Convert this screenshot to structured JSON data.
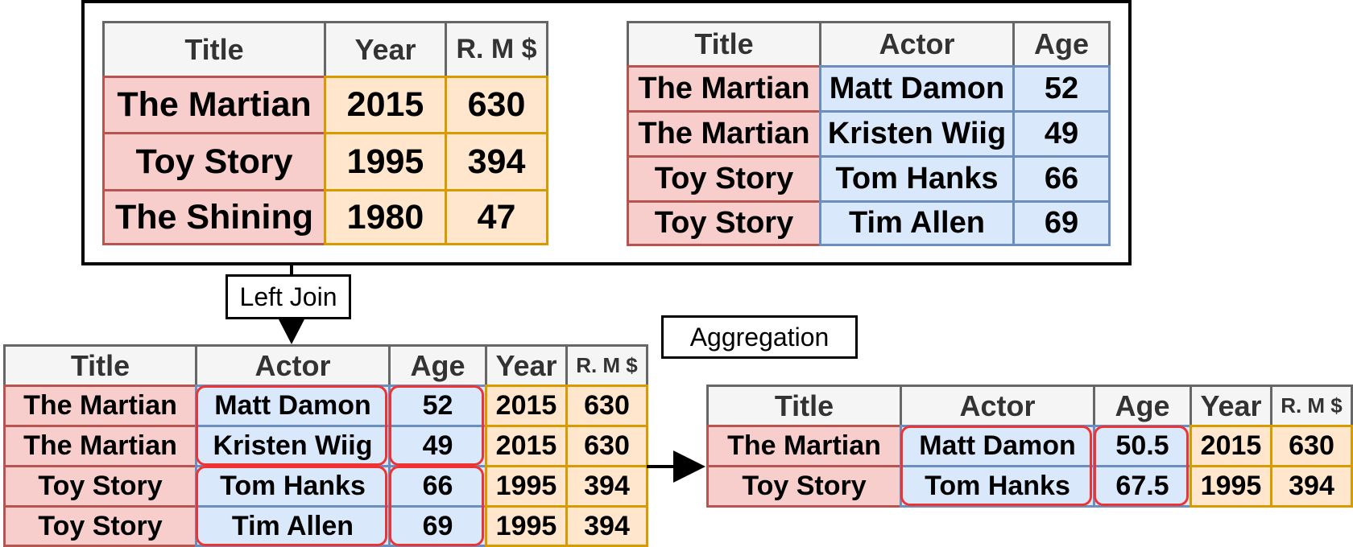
{
  "colors": {
    "header_fill": "#f5f5f5",
    "header_border": "#666666",
    "title_fill": "#f8cecc",
    "title_border": "#b85450",
    "numeric_fill": "#ffe6cc",
    "numeric_border": "#d79b00",
    "actor_fill": "#dae8fc",
    "actor_border": "#6c8ebf",
    "group_highlight": "#ee3333"
  },
  "labels": {
    "join": "Left Join",
    "aggregation": "Aggregation"
  },
  "movies": {
    "headers": [
      "Title",
      "Year",
      "R. M $"
    ],
    "rows": [
      [
        "The Martian",
        "2015",
        "630"
      ],
      [
        "Toy Story",
        "1995",
        "394"
      ],
      [
        "The Shining",
        "1980",
        "47"
      ]
    ]
  },
  "cast": {
    "headers": [
      "Title",
      "Actor",
      "Age"
    ],
    "rows": [
      [
        "The Martian",
        "Matt Damon",
        "52"
      ],
      [
        "The Martian",
        "Kristen Wiig",
        "49"
      ],
      [
        "Toy Story",
        "Tom Hanks",
        "66"
      ],
      [
        "Toy Story",
        "Tim Allen",
        "69"
      ]
    ]
  },
  "joined": {
    "headers": [
      "Title",
      "Actor",
      "Age",
      "Year",
      "R. M $"
    ],
    "rows": [
      [
        "The Martian",
        "Matt Damon",
        "52",
        "2015",
        "630"
      ],
      [
        "The Martian",
        "Kristen Wiig",
        "49",
        "2015",
        "630"
      ],
      [
        "Toy Story",
        "Tom Hanks",
        "66",
        "1995",
        "394"
      ],
      [
        "Toy Story",
        "Tim Allen",
        "69",
        "1995",
        "394"
      ]
    ]
  },
  "aggregated": {
    "headers": [
      "Title",
      "Actor",
      "Age",
      "Year",
      "R. M $"
    ],
    "rows": [
      [
        "The Martian",
        "Matt Damon",
        "50.5",
        "2015",
        "630"
      ],
      [
        "Toy Story",
        "Tom Hanks",
        "67.5",
        "1995",
        "394"
      ]
    ]
  }
}
